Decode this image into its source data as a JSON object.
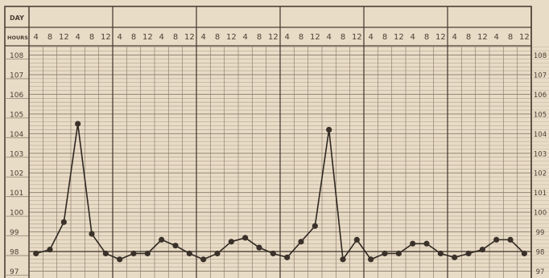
{
  "chart_data": {
    "type": "line",
    "row_labels": {
      "day": "DAY",
      "hours": "HOURS"
    },
    "days": 6,
    "hour_ticks": [
      "4",
      "8",
      "12",
      "4",
      "8",
      "12"
    ],
    "y_ticks": [
      "108",
      "107",
      "106",
      "105",
      "104",
      "103",
      "102",
      "101",
      "100",
      "99",
      "98",
      "97"
    ],
    "right_ticks": [
      "108",
      "107",
      "106",
      "105",
      "104",
      "103",
      "102",
      "101",
      "100",
      "99",
      "98",
      "97"
    ],
    "ylim": [
      96.7,
      108.3
    ],
    "normal_line": 98,
    "grid": true,
    "series": [
      {
        "values": [
          97.9,
          98.1,
          99.5,
          104.5,
          98.9,
          97.9,
          97.6,
          97.9,
          97.9,
          98.6,
          98.3,
          97.9,
          97.6,
          97.9,
          98.5,
          98.7,
          98.2,
          97.9,
          97.7,
          98.5,
          99.3,
          104.2,
          97.6,
          98.6,
          97.6,
          97.9,
          97.9,
          98.4,
          98.4,
          97.9,
          97.7,
          97.9,
          98.1,
          98.6,
          98.6,
          97.9
        ]
      }
    ],
    "colors": {
      "paper": "#e9dcc6",
      "ink": "#4a3f35",
      "grid": "#8f8272"
    }
  }
}
